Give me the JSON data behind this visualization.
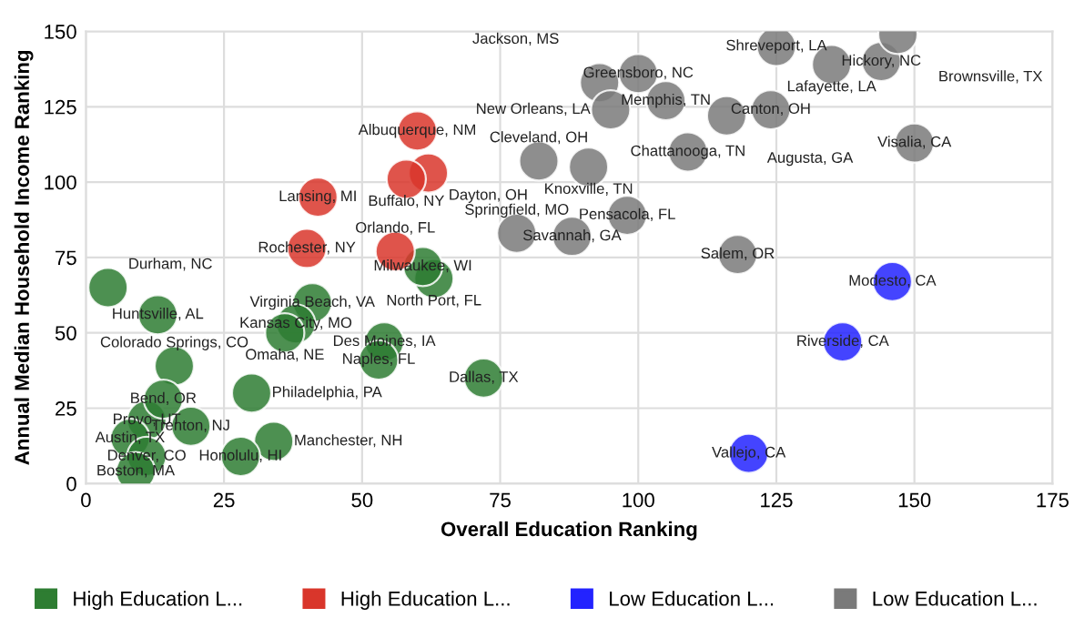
{
  "chart_data": {
    "type": "scatter",
    "xlabel": "Overall Education Ranking",
    "ylabel": "Annual Median Household Income Ranking",
    "xlim": [
      0,
      175
    ],
    "ylim": [
      0,
      150
    ],
    "xticks": [
      0,
      25,
      50,
      75,
      100,
      125,
      150,
      175
    ],
    "yticks": [
      0,
      25,
      50,
      75,
      100,
      125,
      150
    ],
    "grid": true,
    "legend": "bottom",
    "marker": "circle",
    "series": [
      {
        "name": "High Education L...",
        "color": "#2e7d32",
        "x": [
          4,
          13,
          16,
          30,
          41,
          38,
          36,
          54,
          53,
          72,
          63,
          61,
          34,
          28,
          19,
          11,
          14,
          8,
          11,
          9
        ],
        "values": [
          65,
          56,
          39,
          30,
          60,
          53,
          50,
          47,
          41,
          35,
          68,
          72,
          14,
          9,
          19,
          21,
          28,
          15,
          9,
          4
        ],
        "value_labels": [
          "Durham, NC",
          "Huntsville, AL",
          "Colorado Springs, CO",
          "Philadelphia, PA",
          "Virginia Beach, VA",
          "Kansas City, MO",
          "Omaha, NE",
          "Des Moines, IA",
          "Naples, FL",
          "Dallas, TX",
          "North Port, FL",
          "Milwaukee, WI",
          "Manchester, NH",
          "Honolulu, HI",
          "Trenton, NJ",
          "Provo, UT",
          "Bend, OR",
          "Austin, TX",
          "Denver, CO",
          "Boston, MA"
        ]
      },
      {
        "name": "High Education L...",
        "color": "#d9362b",
        "x": [
          60,
          62,
          58,
          42,
          40,
          56
        ],
        "values": [
          117,
          103,
          101,
          95,
          78,
          77
        ],
        "value_labels": [
          "Albuquerque, NM",
          "Dayton, OH",
          "Buffalo, NY",
          "Lansing, MI",
          "Rochester, NY",
          "Orlando, FL"
        ]
      },
      {
        "name": "Low Education L...",
        "color": "#2323ff",
        "x": [
          146,
          137,
          120
        ],
        "values": [
          67,
          47,
          10
        ],
        "value_labels": [
          "Modesto, CA",
          "Riverside, CA",
          "Vallejo, CA"
        ]
      },
      {
        "name": "Low Education L...",
        "color": "#7a7a7a",
        "x": [
          82,
          91,
          109,
          78,
          88,
          98,
          118,
          93,
          100,
          95,
          105,
          116,
          124,
          125,
          135,
          144,
          147,
          150
        ],
        "values": [
          107,
          105,
          110,
          83,
          82,
          89,
          76,
          133,
          136,
          124,
          127,
          122,
          124,
          145,
          139,
          140,
          149,
          113
        ],
        "value_labels": [
          "Cleveland, OH",
          "Knoxville, TN",
          "Chattanooga, TN",
          "Springfield, MO",
          "Savannah, GA",
          "Pensacola, FL",
          "Salem, OR",
          "Jackson, MS",
          "Greensboro, NC",
          "New Orleans, LA",
          "Memphis, TN",
          "Augusta, GA",
          "Canton, OH",
          "Shreveport, LA",
          "Lafayette, LA",
          "Hickory, NC",
          "Brownsville, TX",
          "Visalia, CA"
        ]
      }
    ]
  }
}
